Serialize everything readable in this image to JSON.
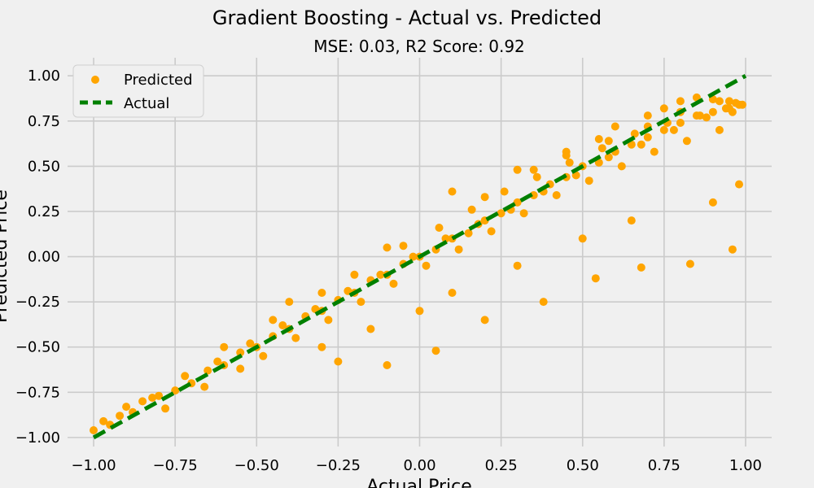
{
  "chart_data": {
    "type": "scatter",
    "title": "Gradient Boosting - Actual vs. Predicted",
    "subtitle": "MSE: 0.03, R2 Score: 0.92",
    "xlabel": "Actual Price",
    "ylabel": "Predicted Price",
    "xlim": [
      -1.08,
      1.08
    ],
    "ylim": [
      -1.05,
      1.1
    ],
    "xticks": [
      -1.0,
      -0.75,
      -0.5,
      -0.25,
      0.0,
      0.25,
      0.5,
      0.75,
      1.0
    ],
    "xtick_labels": [
      "−1.00",
      "−0.75",
      "−0.50",
      "−0.25",
      "0.00",
      "0.25",
      "0.50",
      "0.75",
      "1.00"
    ],
    "yticks": [
      -1.0,
      -0.75,
      -0.5,
      -0.25,
      0.0,
      0.25,
      0.5,
      0.75,
      1.0
    ],
    "ytick_labels": [
      "−1.00",
      "−0.75",
      "−0.50",
      "−0.25",
      "0.00",
      "0.25",
      "0.50",
      "0.75",
      "1.00"
    ],
    "grid": true,
    "legend": {
      "placement": "top-left",
      "entries": [
        {
          "label": "Predicted",
          "marker": "circle",
          "color": "#FFA500"
        },
        {
          "label": "Actual",
          "marker": "dashed-line",
          "color": "#008000"
        }
      ]
    },
    "series": [
      {
        "name": "Predicted",
        "kind": "scatter",
        "color": "#FFA500",
        "x": [
          -1.0,
          -0.95,
          -0.92,
          -0.88,
          -0.85,
          -0.8,
          -0.75,
          -0.7,
          -0.65,
          -0.6,
          -0.55,
          -0.5,
          -0.45,
          -0.4,
          -0.35,
          -0.3,
          -0.25,
          -0.2,
          -0.15,
          -0.1,
          -0.05,
          0.0,
          0.05,
          0.1,
          0.15,
          0.2,
          0.25,
          0.3,
          0.35,
          0.4,
          0.45,
          0.5,
          0.55,
          0.6,
          0.65,
          0.7,
          0.75,
          0.8,
          0.85,
          0.9,
          0.95,
          0.98,
          -0.97,
          -0.9,
          -0.82,
          -0.72,
          -0.62,
          -0.52,
          -0.42,
          -0.32,
          -0.22,
          -0.12,
          -0.02,
          0.08,
          0.18,
          0.28,
          0.38,
          0.48,
          0.58,
          0.68,
          0.78,
          0.88,
          0.96,
          -0.78,
          -0.66,
          -0.55,
          -0.48,
          -0.38,
          -0.28,
          -0.18,
          -0.08,
          0.02,
          0.12,
          0.22,
          0.32,
          0.42,
          0.52,
          0.62,
          0.72,
          0.82,
          0.92,
          -0.6,
          -0.45,
          -0.3,
          -0.2,
          -0.05,
          0.06,
          0.16,
          0.26,
          0.36,
          0.46,
          0.56,
          0.66,
          0.76,
          0.86,
          0.94,
          -0.4,
          -0.1,
          0.2,
          0.35,
          0.45,
          0.55,
          0.6,
          0.7,
          0.75,
          0.8,
          0.85,
          0.9,
          0.95,
          0.97,
          0.99,
          -0.3,
          -0.15,
          0.0,
          0.1,
          0.3,
          0.5,
          0.65,
          0.9,
          0.98,
          0.1,
          0.3,
          0.45,
          0.58,
          0.7,
          0.8,
          0.92,
          -0.25,
          -0.1,
          0.05,
          0.2,
          0.38,
          0.54,
          0.68,
          0.83,
          0.96
        ],
        "y": [
          -0.96,
          -0.93,
          -0.88,
          -0.86,
          -0.8,
          -0.77,
          -0.74,
          -0.7,
          -0.63,
          -0.6,
          -0.53,
          -0.5,
          -0.44,
          -0.4,
          -0.33,
          -0.3,
          -0.24,
          -0.2,
          -0.13,
          -0.1,
          -0.04,
          0.0,
          0.04,
          0.1,
          0.13,
          0.2,
          0.24,
          0.3,
          0.34,
          0.4,
          0.44,
          0.5,
          0.52,
          0.58,
          0.62,
          0.66,
          0.7,
          0.74,
          0.78,
          0.8,
          0.82,
          0.84,
          -0.91,
          -0.83,
          -0.78,
          -0.66,
          -0.58,
          -0.48,
          -0.38,
          -0.29,
          -0.19,
          -0.1,
          0.0,
          0.1,
          0.18,
          0.26,
          0.36,
          0.45,
          0.55,
          0.62,
          0.7,
          0.77,
          0.8,
          -0.84,
          -0.72,
          -0.62,
          -0.55,
          -0.45,
          -0.35,
          -0.25,
          -0.15,
          -0.05,
          0.04,
          0.14,
          0.24,
          0.34,
          0.42,
          0.5,
          0.58,
          0.64,
          0.7,
          -0.5,
          -0.35,
          -0.2,
          -0.1,
          0.06,
          0.16,
          0.26,
          0.36,
          0.44,
          0.52,
          0.6,
          0.68,
          0.74,
          0.78,
          0.82,
          -0.25,
          0.05,
          0.33,
          0.48,
          0.58,
          0.65,
          0.72,
          0.78,
          0.82,
          0.86,
          0.88,
          0.87,
          0.86,
          0.85,
          0.84,
          -0.5,
          -0.4,
          -0.3,
          -0.2,
          -0.05,
          0.1,
          0.2,
          0.3,
          0.4,
          0.36,
          0.48,
          0.56,
          0.64,
          0.72,
          0.8,
          0.86,
          -0.58,
          -0.6,
          -0.52,
          -0.35,
          -0.25,
          -0.12,
          -0.06,
          -0.04,
          0.04
        ]
      },
      {
        "name": "Actual",
        "kind": "line",
        "style": "dashed",
        "color": "#008000",
        "x": [
          -1.0,
          1.0
        ],
        "y": [
          -1.0,
          1.0
        ]
      }
    ]
  }
}
